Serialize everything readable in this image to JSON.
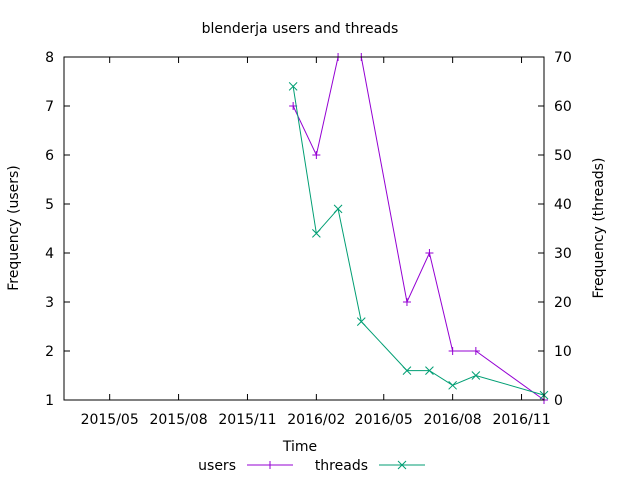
{
  "chart_data": {
    "type": "line",
    "title": "blenderja users and threads",
    "xlabel": "Time",
    "ylabel_left": "Frequency (users)",
    "ylabel_right": "Frequency (threads)",
    "x_ticks": [
      "2015/05",
      "2015/08",
      "2015/11",
      "2016/02",
      "2016/05",
      "2016/08",
      "2016/11"
    ],
    "x_range": [
      "2015-03-01",
      "2016-12-01"
    ],
    "y_left_range": [
      1,
      8
    ],
    "y_left_ticks": [
      "1",
      "2",
      "3",
      "4",
      "5",
      "6",
      "7",
      "8"
    ],
    "y_right_range": [
      0,
      70
    ],
    "y_right_ticks": [
      "0",
      "10",
      "20",
      "30",
      "40",
      "50",
      "60",
      "70"
    ],
    "grid": false,
    "legend_position": "bottom",
    "series": [
      {
        "name": "users",
        "axis": "left",
        "color": "#9400D3",
        "marker": "plus",
        "points": [
          {
            "x": "2016-01-01",
            "y": 7
          },
          {
            "x": "2016-02-01",
            "y": 6
          },
          {
            "x": "2016-03-01",
            "y": 8
          },
          {
            "x": "2016-04-01",
            "y": 8
          },
          {
            "x": "2016-06-01",
            "y": 3
          },
          {
            "x": "2016-07-01",
            "y": 4
          },
          {
            "x": "2016-08-01",
            "y": 2
          },
          {
            "x": "2016-09-01",
            "y": 2
          },
          {
            "x": "2016-12-01",
            "y": 1
          }
        ]
      },
      {
        "name": "threads",
        "axis": "right",
        "color": "#009E73",
        "marker": "cross",
        "points": [
          {
            "x": "2016-01-01",
            "y": 64
          },
          {
            "x": "2016-02-01",
            "y": 34
          },
          {
            "x": "2016-03-01",
            "y": 39
          },
          {
            "x": "2016-04-01",
            "y": 16
          },
          {
            "x": "2016-06-01",
            "y": 6
          },
          {
            "x": "2016-07-01",
            "y": 6
          },
          {
            "x": "2016-08-01",
            "y": 3
          },
          {
            "x": "2016-09-01",
            "y": 5
          },
          {
            "x": "2016-12-01",
            "y": 1
          }
        ]
      }
    ]
  }
}
